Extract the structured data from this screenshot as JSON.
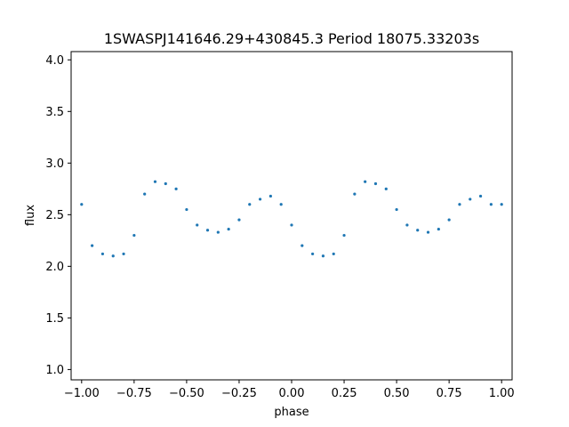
{
  "chart_data": {
    "type": "scatter",
    "title": "1SWASPJ141646.29+430845.3 Period 18075.33203s",
    "xlabel": "phase",
    "ylabel": "flux",
    "xlim": [
      -1.05,
      1.05
    ],
    "ylim": [
      0.9,
      4.08
    ],
    "x_ticks": [
      -1.0,
      -0.75,
      -0.5,
      -0.25,
      0.0,
      0.25,
      0.5,
      0.75,
      1.0
    ],
    "x_tick_labels": [
      "−1.00",
      "−0.75",
      "−0.50",
      "−0.25",
      "0.00",
      "0.25",
      "0.50",
      "0.75",
      "1.00"
    ],
    "y_ticks": [
      1.0,
      1.5,
      2.0,
      2.5,
      3.0,
      3.5,
      4.0
    ],
    "y_tick_labels": [
      "1.0",
      "1.5",
      "2.0",
      "2.5",
      "3.0",
      "3.5",
      "4.0"
    ],
    "grid": false,
    "marker_color": "#1f77b4",
    "series": [
      {
        "x": [
          -1.0,
          -0.95,
          -0.9,
          -0.85,
          -0.8,
          -0.75,
          -0.7,
          -0.65,
          -0.6,
          -0.55,
          -0.5,
          -0.45,
          -0.4,
          -0.35,
          -0.3,
          -0.25,
          -0.2,
          -0.15,
          -0.1,
          -0.05,
          0.0,
          0.05,
          0.1,
          0.15,
          0.2,
          0.25,
          0.3,
          0.35,
          0.4,
          0.45,
          0.5,
          0.55,
          0.6,
          0.65,
          0.7,
          0.75,
          0.8,
          0.85,
          0.9,
          0.95,
          1.0
        ],
        "y": [
          2.6,
          2.2,
          2.12,
          2.1,
          2.12,
          2.3,
          2.7,
          2.82,
          2.8,
          2.75,
          2.55,
          2.4,
          2.35,
          2.33,
          2.36,
          2.45,
          2.6,
          2.65,
          2.68,
          2.6,
          2.4,
          2.2,
          2.12,
          2.1,
          2.12,
          2.3,
          2.7,
          2.82,
          2.8,
          2.75,
          2.55,
          2.4,
          2.35,
          2.33,
          2.36,
          2.45,
          2.6,
          2.65,
          2.68,
          2.6,
          2.6
        ]
      }
    ]
  }
}
